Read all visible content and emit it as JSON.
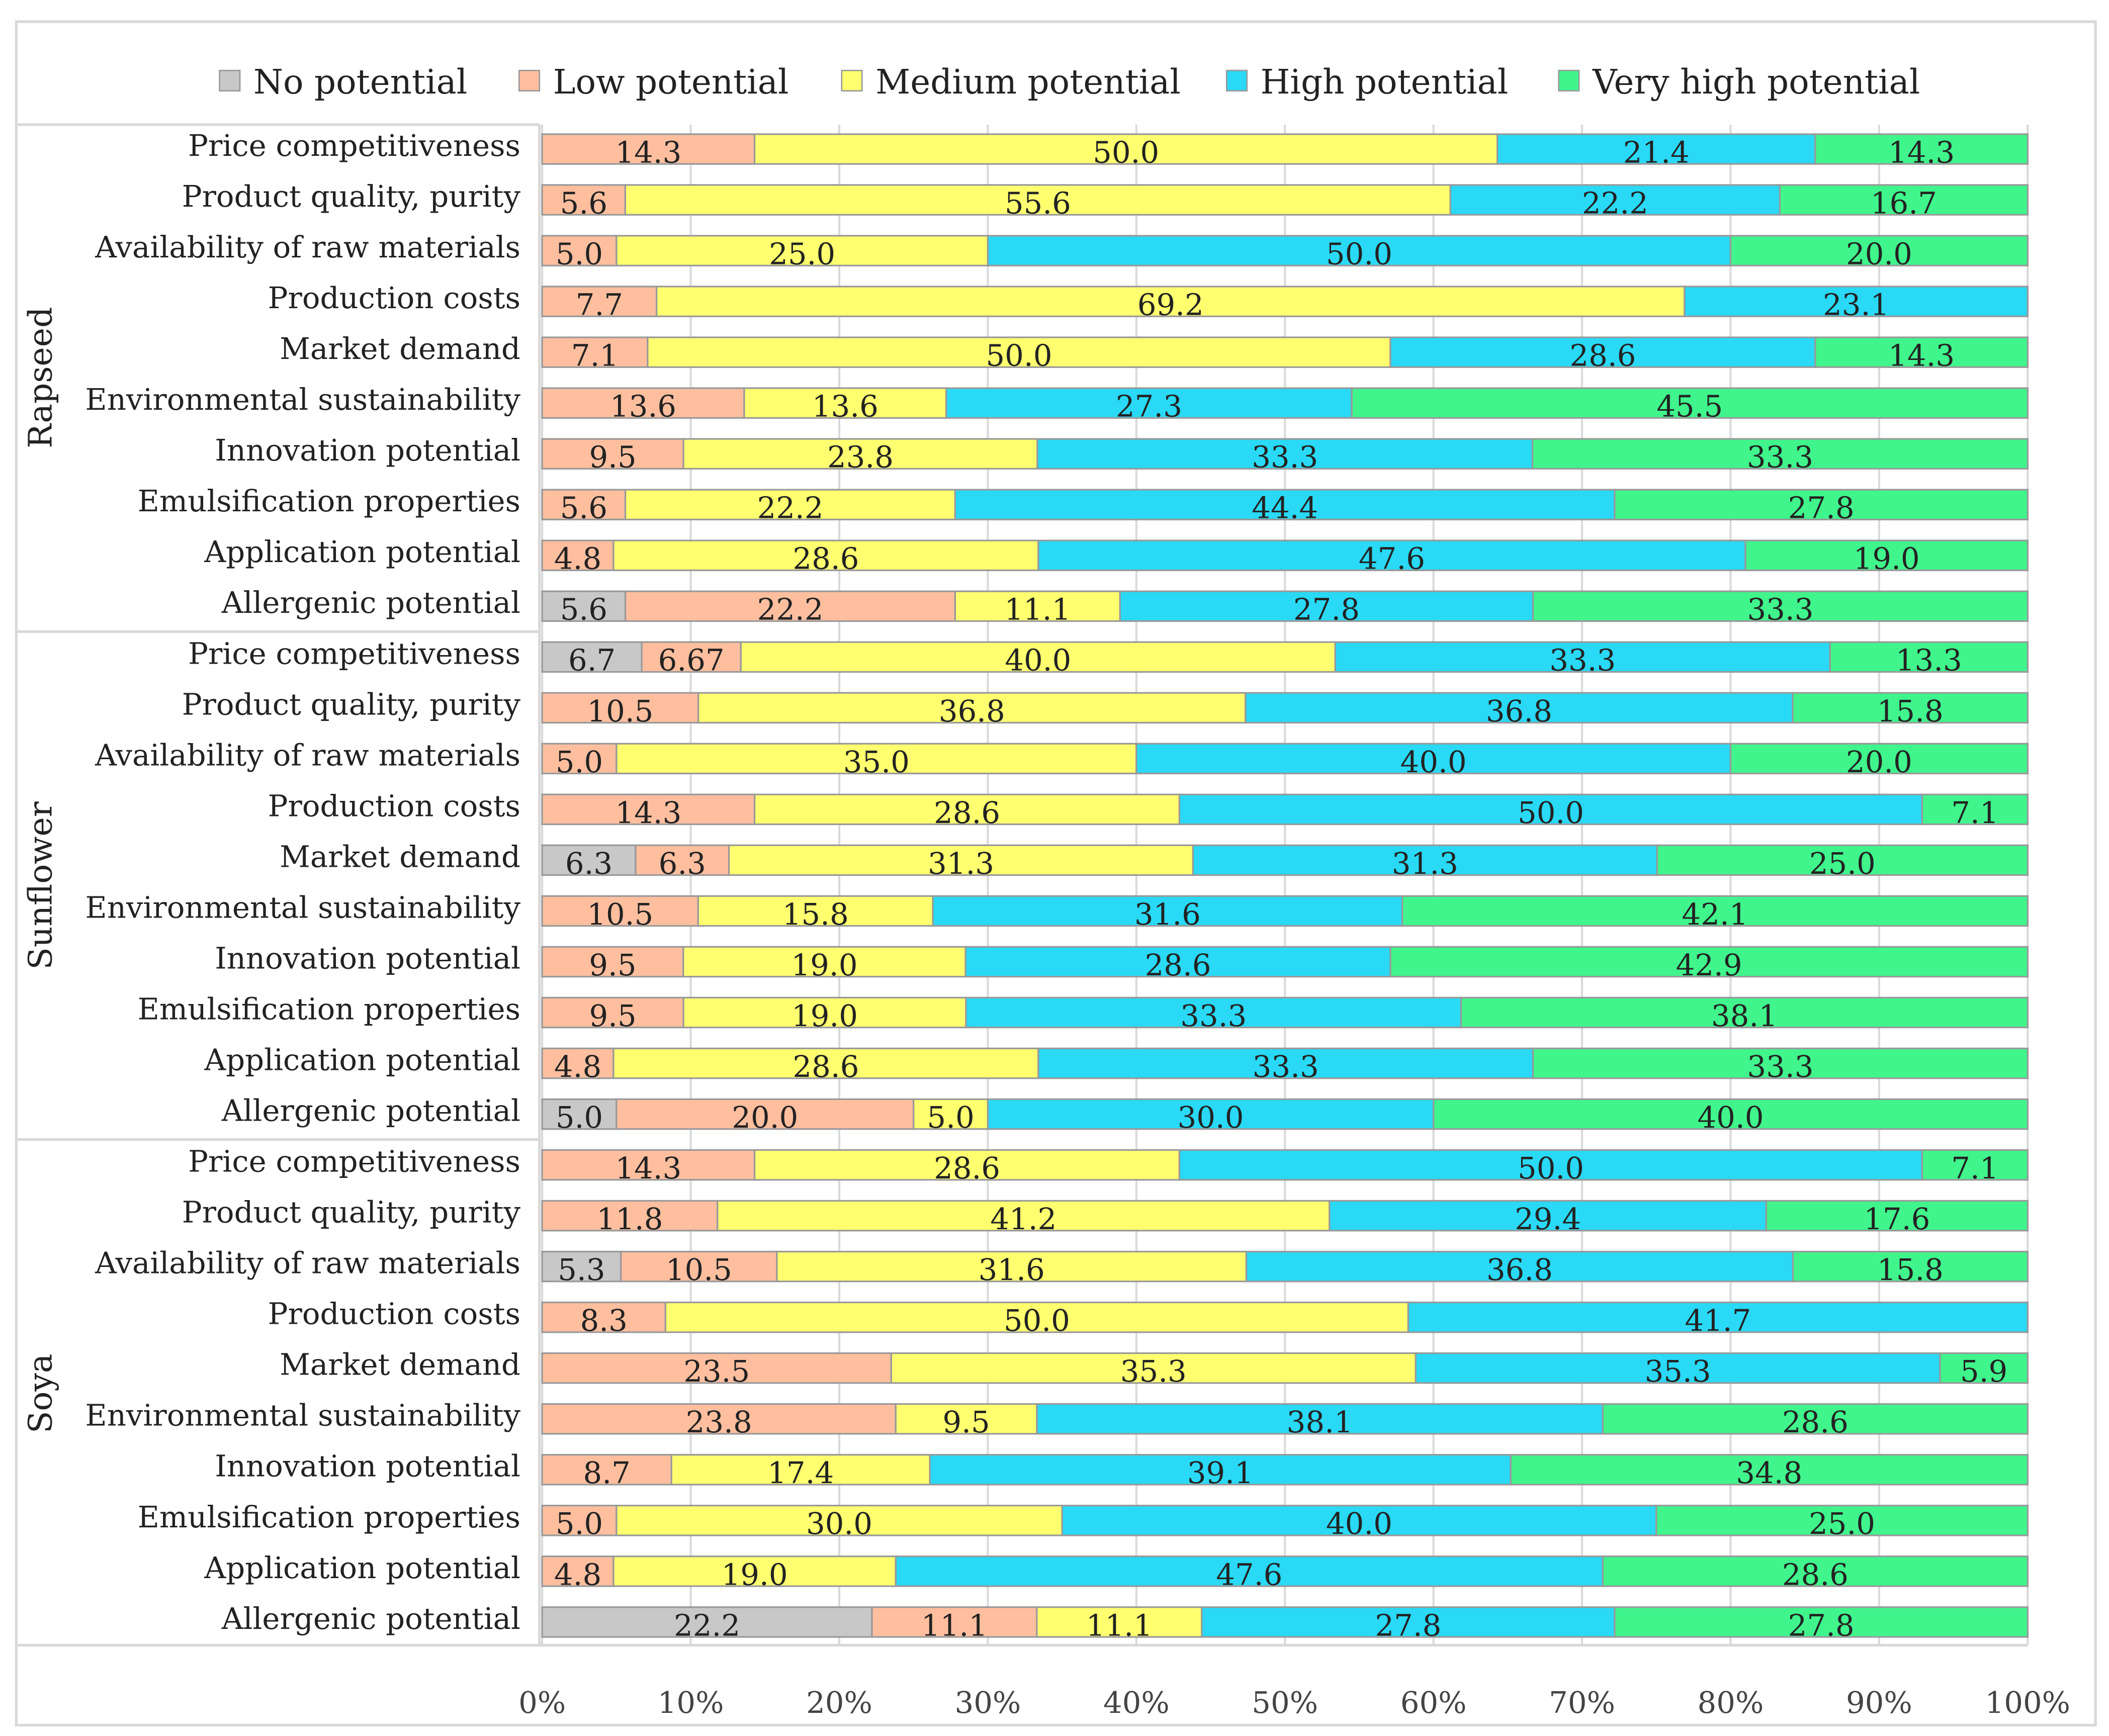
{
  "chart_data": {
    "type": "bar",
    "orientation": "horizontal",
    "stacked": "percent",
    "title": "",
    "xlabel": "",
    "ylabel": "",
    "xlim": [
      0,
      100
    ],
    "x_ticks": [
      "0%",
      "10%",
      "20%",
      "30%",
      "40%",
      "50%",
      "60%",
      "70%",
      "80%",
      "90%",
      "100%"
    ],
    "grid": true,
    "legend_position": "top",
    "series_names": [
      "No potential",
      "Low potential",
      "Medium potential",
      "High potential",
      "Very high potential"
    ],
    "colors": [
      "#C8C8C8",
      "#FFBF9F",
      "#FFFF70",
      "#29D9F5",
      "#40F58C"
    ],
    "categories": [
      "Price competitiveness",
      "Product quality, purity",
      "Availability of raw materials",
      "Production costs",
      "Market demand",
      "Environmental sustainability",
      "Innovation potential",
      "Emulsification properties",
      "Application potential",
      "Allergenic potential"
    ],
    "groups": [
      {
        "name": "Rapseed",
        "values": [
          [
            0,
            14.3,
            50.0,
            21.4,
            14.3
          ],
          [
            0,
            5.6,
            55.6,
            22.2,
            16.7
          ],
          [
            0,
            5.0,
            25.0,
            50.0,
            20.0
          ],
          [
            0,
            7.7,
            69.2,
            23.1,
            0
          ],
          [
            0,
            7.1,
            50.0,
            28.6,
            14.3
          ],
          [
            0,
            13.6,
            13.6,
            27.3,
            45.5
          ],
          [
            0,
            9.5,
            23.8,
            33.3,
            33.3
          ],
          [
            0,
            5.6,
            22.2,
            44.4,
            27.8
          ],
          [
            0,
            4.8,
            28.6,
            47.6,
            19.0
          ],
          [
            5.6,
            22.2,
            11.1,
            27.8,
            33.3
          ]
        ]
      },
      {
        "name": "Sunflower",
        "values": [
          [
            6.7,
            6.67,
            40.0,
            33.3,
            13.3
          ],
          [
            0,
            10.5,
            36.8,
            36.8,
            15.8
          ],
          [
            0,
            5.0,
            35.0,
            40.0,
            20.0
          ],
          [
            0,
            14.3,
            28.6,
            50.0,
            7.1
          ],
          [
            6.3,
            6.3,
            31.3,
            31.3,
            25.0
          ],
          [
            0,
            10.5,
            15.8,
            31.6,
            42.1
          ],
          [
            0,
            9.5,
            19.0,
            28.6,
            42.9
          ],
          [
            0,
            9.5,
            19.0,
            33.3,
            38.1
          ],
          [
            0,
            4.8,
            28.6,
            33.3,
            33.3
          ],
          [
            5.0,
            20.0,
            5.0,
            30.0,
            40.0
          ]
        ]
      },
      {
        "name": "Soya",
        "values": [
          [
            0,
            14.3,
            28.6,
            50.0,
            7.1
          ],
          [
            0,
            11.8,
            41.2,
            29.4,
            17.6
          ],
          [
            5.3,
            10.5,
            31.6,
            36.8,
            15.8
          ],
          [
            0,
            8.3,
            50.0,
            41.7,
            0
          ],
          [
            0,
            23.5,
            35.3,
            35.3,
            5.9
          ],
          [
            0,
            23.8,
            9.5,
            38.1,
            28.6
          ],
          [
            0,
            8.7,
            17.4,
            39.1,
            34.8
          ],
          [
            0,
            5.0,
            30.0,
            40.0,
            25.0
          ],
          [
            0,
            4.8,
            19.0,
            47.6,
            28.6
          ],
          [
            22.2,
            11.1,
            11.1,
            27.8,
            27.8
          ]
        ]
      }
    ]
  }
}
